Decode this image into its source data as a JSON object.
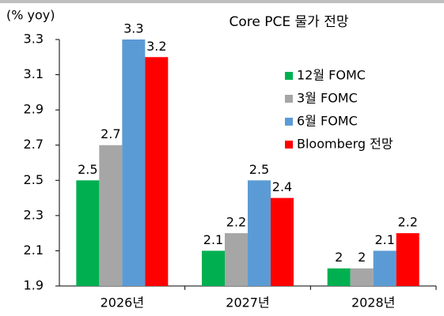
{
  "chart_data": {
    "type": "bar",
    "title": "Core PCE 물가 전망",
    "y_axis_label": "(% yoy)",
    "categories": [
      "2026년",
      "2027년",
      "2028년"
    ],
    "series": [
      {
        "name": "12월 FOMC",
        "color": "#00b050",
        "values": [
          2.5,
          2.1,
          2
        ]
      },
      {
        "name": "3월 FOMC",
        "color": "#a6a6a6",
        "values": [
          2.7,
          2.2,
          2
        ]
      },
      {
        "name": "6월 FOMC",
        "color": "#5b9bd5",
        "values": [
          3.3,
          2.5,
          2.1
        ]
      },
      {
        "name": "Bloomberg 전망",
        "color": "#ff0000",
        "values": [
          3.2,
          2.4,
          2.2
        ]
      }
    ],
    "ylim": [
      1.9,
      3.3
    ],
    "yticks": [
      1.9,
      2.1,
      2.3,
      2.5,
      2.7,
      2.9,
      3.1,
      3.3
    ],
    "grid": false,
    "legend": "right"
  }
}
